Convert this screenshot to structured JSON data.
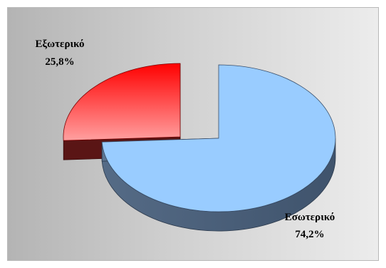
{
  "chart_data": {
    "type": "pie",
    "title": "",
    "categories": [
      "Εσωτερικό",
      "Εξωτερικό"
    ],
    "values": [
      74.2,
      25.8
    ],
    "labels": [
      {
        "name": "Εσωτερικό",
        "value_text": "74,2%"
      },
      {
        "name": "Εξωτερικό",
        "value_text": "25,8%"
      }
    ],
    "exploded": true,
    "three_d": true,
    "legend": "none",
    "colors": {
      "Εσωτερικό": {
        "top": "#99ccff",
        "side": "#4a607a"
      },
      "Εξωτερικό": {
        "top_light": "#ff9c9c",
        "top_dark": "#ff0000",
        "side": "#5a1515"
      }
    }
  }
}
